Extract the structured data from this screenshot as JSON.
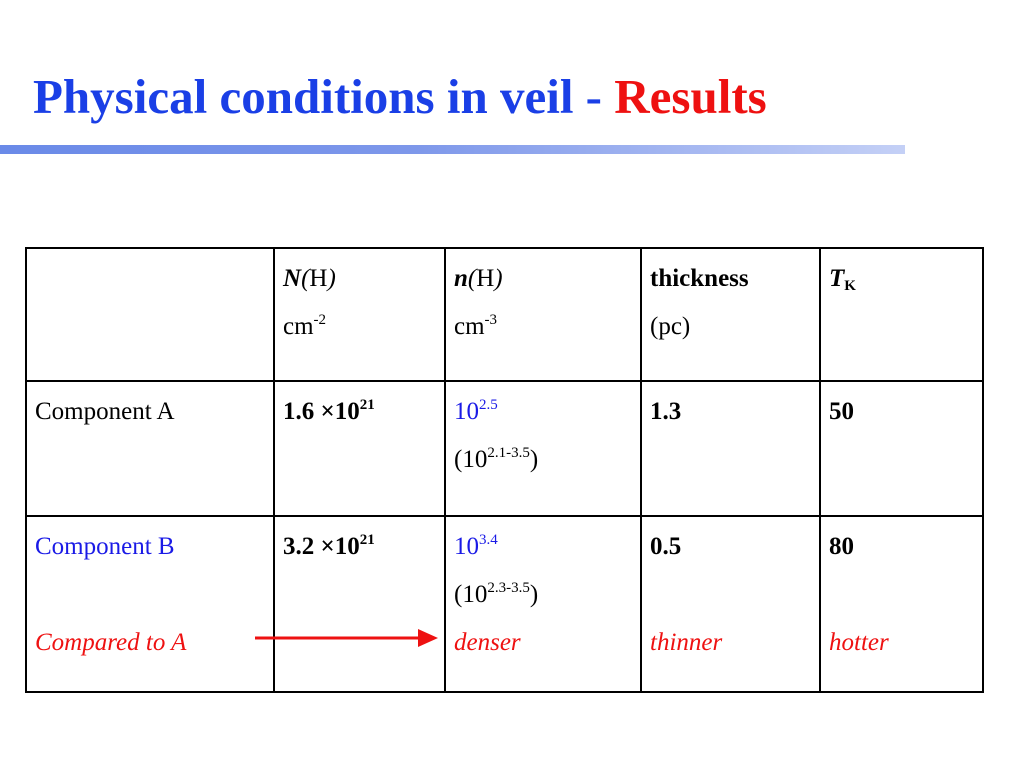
{
  "title": {
    "main": "Physical conditions in veil - ",
    "highlight": "Results"
  },
  "table": {
    "header": {
      "col1_sym": "N",
      "col1_open": "(",
      "col1_var": "H",
      "col1_close": ")",
      "col1_unit": "cm",
      "col1_exp": "-2",
      "col2_sym": "n",
      "col2_open": "(",
      "col2_var": "H",
      "col2_close": ")",
      "col2_unit": "cm",
      "col2_exp": "-3",
      "col3_line1": "thickness",
      "col3_line2": "(pc)",
      "col4_sym": "T",
      "col4_sub": "K"
    },
    "rows": [
      {
        "label": "Component A",
        "nh_mant": "1.6 ×10",
        "nh_exp": "21",
        "dens_base": "10",
        "dens_exp": "2.5",
        "dens_range_open": "(10",
        "dens_range_exp": "2.1-3.5",
        "dens_range_close": ")",
        "thickness": "1.3",
        "tk": "50"
      },
      {
        "label": "Component B",
        "nh_mant": "3.2 ×10",
        "nh_exp": "21",
        "dens_base": "10",
        "dens_exp": "3.4",
        "dens_range_open": "(10",
        "dens_range_exp": "2.3-3.5",
        "dens_range_close": ")",
        "thickness": "0.5",
        "tk": "80"
      }
    ],
    "comparison": {
      "label": "Compared to A",
      "density": "denser",
      "thickness": "thinner",
      "temperature": "hotter"
    }
  },
  "colors": {
    "title_blue": "#1a3fe6",
    "accent_red": "#ee1111",
    "label_blue": "#1a1ae6"
  }
}
